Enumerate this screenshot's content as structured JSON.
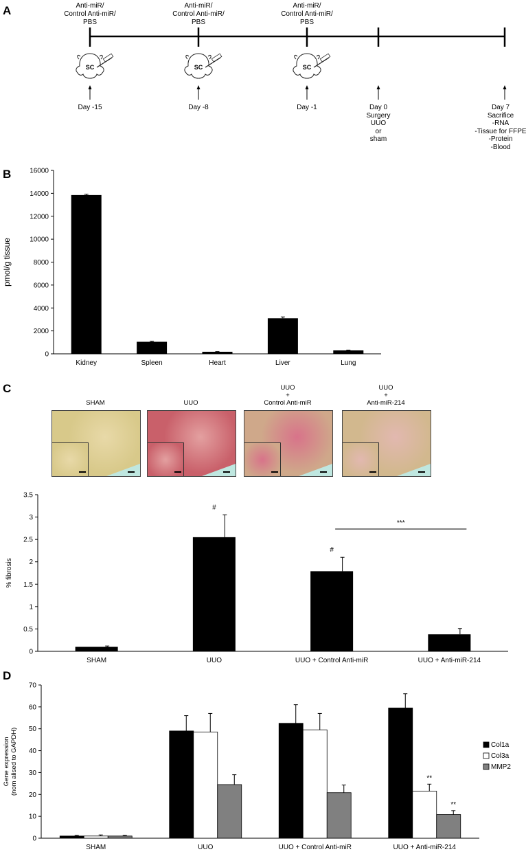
{
  "panel_a": {
    "letter": "A",
    "injection_label_line1": "Anti-miR/",
    "injection_label_line2": "Control Anti-miR/",
    "injection_label_line3": "PBS",
    "sc_label": "SC",
    "days": [
      {
        "lines": [
          "Day -15"
        ]
      },
      {
        "lines": [
          "Day -8"
        ]
      },
      {
        "lines": [
          "Day -1"
        ]
      },
      {
        "lines": [
          "Day 0",
          "Surgery",
          "UUO",
          "or",
          "sham"
        ]
      },
      {
        "lines": [
          "Day 7",
          "Sacrifice",
          "-RNA",
          "-Tissue for FFPE",
          "-Protein",
          "-Blood"
        ]
      }
    ]
  },
  "panel_b": {
    "letter": "B",
    "chart_data": {
      "type": "bar",
      "categories": [
        "Kidney",
        "Spleen",
        "Heart",
        "Liver",
        "Lung"
      ],
      "values": [
        13850,
        1050,
        180,
        3100,
        300
      ],
      "errors": [
        80,
        60,
        20,
        120,
        25
      ],
      "ylabel": "pmol/g tissue",
      "ylim": [
        0,
        16000
      ],
      "yticks": [
        0,
        2000,
        4000,
        6000,
        8000,
        10000,
        12000,
        14000,
        16000
      ],
      "colors": {
        "bar": "#000000"
      }
    }
  },
  "panel_c": {
    "letter": "C",
    "images": [
      {
        "title_lines": [
          "SHAM"
        ],
        "tissue": "#d8c98a",
        "accent": "#e8d9a8"
      },
      {
        "title_lines": [
          "UUO"
        ],
        "tissue": "#c9606a",
        "accent": "#e3a0a0"
      },
      {
        "title_lines": [
          "UUO",
          "+",
          "Control Anti-miR"
        ],
        "tissue": "#cfa88a",
        "accent": "#d8738a"
      },
      {
        "title_lines": [
          "UUO",
          "+",
          "Anti-miR-214"
        ],
        "tissue": "#d2b88e",
        "accent": "#e2b8b0"
      }
    ],
    "chart_data": {
      "type": "bar",
      "categories": [
        "SHAM",
        "UUO",
        "UUO + Control Anti-miR",
        "UUO + Anti-miR-214"
      ],
      "values": [
        0.1,
        2.55,
        1.79,
        0.38
      ],
      "errors": [
        0.02,
        0.5,
        0.31,
        0.13
      ],
      "annotations": [
        "",
        "#",
        "#",
        ""
      ],
      "significance": {
        "from": 2,
        "to": 3,
        "label": "***"
      },
      "ylabel": "% fibrosis",
      "ylim": [
        0,
        3.5
      ],
      "yticks": [
        0,
        0.5,
        1,
        1.5,
        2,
        2.5,
        3,
        3.5
      ],
      "colors": {
        "bar": "#000000"
      }
    }
  },
  "panel_d": {
    "letter": "D",
    "chart_data": {
      "type": "bar",
      "categories": [
        "SHAM",
        "UUO",
        "UUO + Control Anti-miR",
        "UUO + Anti-miR-214"
      ],
      "ylabel_lines": [
        "Gene expression",
        "(nom alised to GAPDH)"
      ],
      "ylim": [
        0,
        70
      ],
      "yticks": [
        0,
        10,
        20,
        30,
        40,
        50,
        60,
        70
      ],
      "series": [
        {
          "name": "Col1a",
          "values": [
            1,
            49,
            52.5,
            59.5
          ],
          "errors": [
            0.3,
            7,
            8.5,
            6.5
          ],
          "annotations": [
            "",
            "",
            "",
            ""
          ],
          "color": "#000000"
        },
        {
          "name": "Col3a",
          "values": [
            1,
            48.5,
            49.5,
            21.5
          ],
          "errors": [
            0.5,
            8.5,
            7.5,
            3.2
          ],
          "annotations": [
            "",
            "",
            "",
            "**"
          ],
          "color": "#ffffff"
        },
        {
          "name": "MMP2",
          "values": [
            1,
            24.5,
            20.8,
            10.8
          ],
          "errors": [
            0.3,
            4.5,
            3.5,
            1.8
          ],
          "annotations": [
            "",
            "",
            "",
            "**"
          ],
          "color": "#808080"
        }
      ],
      "legend": "right"
    }
  }
}
